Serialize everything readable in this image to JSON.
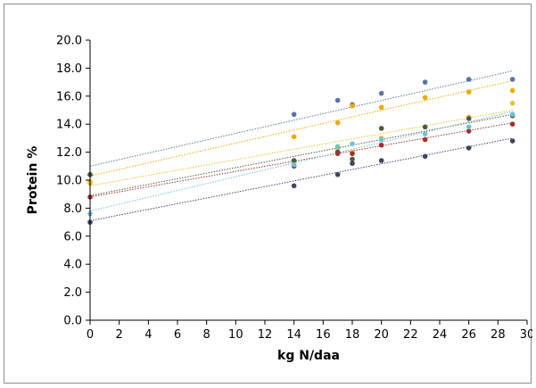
{
  "chart_data": {
    "type": "scatter",
    "title": "",
    "xlabel": "kg N/daa",
    "ylabel": "Protein %",
    "xlim": [
      0,
      30
    ],
    "ylim": [
      0,
      20
    ],
    "xticks": [
      "0",
      "2",
      "4",
      "6",
      "8",
      "10",
      "12",
      "14",
      "16",
      "18",
      "20",
      "22",
      "24",
      "26",
      "28",
      "30"
    ],
    "yticks": [
      "0.0",
      "2.0",
      "4.0",
      "6.0",
      "8.0",
      "10.0",
      "12.0",
      "14.0",
      "16.0",
      "18.0",
      "20.0"
    ],
    "grid": false,
    "legend": "none",
    "series": [
      {
        "color": "#5b74a3",
        "points": [
          [
            0,
            10.4
          ],
          [
            14,
            14.7
          ],
          [
            17,
            15.7
          ],
          [
            18,
            15.4
          ],
          [
            20,
            16.2
          ],
          [
            23,
            17.0
          ],
          [
            26,
            17.2
          ],
          [
            29,
            17.2
          ]
        ],
        "trend": [
          [
            0,
            11.0
          ],
          [
            29,
            17.8
          ]
        ]
      },
      {
        "color": "#f0a800",
        "points": [
          [
            0,
            9.8
          ],
          [
            14,
            13.1
          ],
          [
            17,
            14.1
          ],
          [
            18,
            15.3
          ],
          [
            20,
            15.2
          ],
          [
            23,
            15.9
          ],
          [
            26,
            16.3
          ],
          [
            29,
            16.4
          ]
        ],
        "trend": [
          [
            0,
            10.3
          ],
          [
            29,
            17.1
          ]
        ]
      },
      {
        "color": "#e8c030",
        "points": [
          [
            0,
            9.9
          ],
          [
            17,
            12.2
          ],
          [
            18,
            12.0
          ],
          [
            20,
            13.0
          ],
          [
            23,
            13.8
          ],
          [
            26,
            14.5
          ],
          [
            29,
            15.5
          ]
        ],
        "trend": [
          [
            0,
            9.6
          ],
          [
            29,
            15.0
          ]
        ]
      },
      {
        "color": "#4e5a3c",
        "points": [
          [
            0,
            10.4
          ],
          [
            14,
            11.4
          ],
          [
            17,
            12.0
          ],
          [
            18,
            11.5
          ],
          [
            20,
            13.7
          ],
          [
            23,
            13.8
          ],
          [
            26,
            14.4
          ],
          [
            29,
            14.6
          ]
        ],
        "trend": [
          [
            0,
            8.9
          ],
          [
            29,
            14.7
          ]
        ]
      },
      {
        "color": "#a03030",
        "points": [
          [
            0,
            8.8
          ],
          [
            14,
            11.0
          ],
          [
            17,
            11.9
          ],
          [
            18,
            11.9
          ],
          [
            20,
            12.5
          ],
          [
            23,
            12.9
          ],
          [
            26,
            13.5
          ],
          [
            29,
            14.0
          ]
        ],
        "trend": [
          [
            0,
            8.8
          ],
          [
            29,
            14.1
          ]
        ]
      },
      {
        "color": "#70c0d8",
        "points": [
          [
            0,
            7.6
          ],
          [
            14,
            11.1
          ],
          [
            17,
            12.4
          ],
          [
            18,
            12.6
          ],
          [
            20,
            12.9
          ],
          [
            23,
            13.3
          ],
          [
            26,
            13.8
          ],
          [
            29,
            14.7
          ]
        ],
        "trend": [
          [
            0,
            7.8
          ],
          [
            29,
            14.9
          ]
        ]
      },
      {
        "color": "#3c4660",
        "points": [
          [
            0,
            7.0
          ],
          [
            14,
            9.6
          ],
          [
            17,
            10.4
          ],
          [
            18,
            11.2
          ],
          [
            20,
            11.4
          ],
          [
            23,
            11.7
          ],
          [
            26,
            12.3
          ],
          [
            29,
            12.8
          ]
        ],
        "trend": [
          [
            0,
            7.1
          ],
          [
            29,
            13.0
          ]
        ]
      }
    ]
  }
}
